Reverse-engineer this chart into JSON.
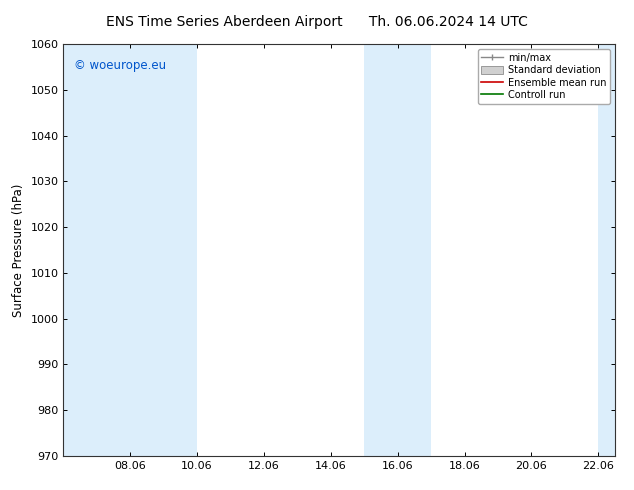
{
  "title": "ENS Time Series Aberdeen Airport",
  "date_str": "Th. 06.06.2024 14 UTC",
  "ylabel": "Surface Pressure (hPa)",
  "ylim": [
    970,
    1060
  ],
  "yticks": [
    970,
    980,
    990,
    1000,
    1010,
    1020,
    1030,
    1040,
    1050,
    1060
  ],
  "xlim_num": [
    6.0,
    22.5
  ],
  "xtick_positions": [
    8.0,
    10.0,
    12.0,
    14.0,
    16.0,
    18.0,
    20.0,
    22.0
  ],
  "xtick_labels": [
    "08.06",
    "10.06",
    "12.06",
    "14.06",
    "16.06",
    "18.06",
    "20.06",
    "22.06"
  ],
  "shaded_bands": [
    {
      "xmin": 6.0,
      "xmax": 10.0
    },
    {
      "xmin": 15.0,
      "xmax": 17.0
    },
    {
      "xmin": 22.0,
      "xmax": 22.5
    }
  ],
  "band_color": "#dceefb",
  "watermark_text": "© woeurope.eu",
  "watermark_color": "#0055cc",
  "background_color": "#ffffff",
  "legend_labels": [
    "min/max",
    "Standard deviation",
    "Ensemble mean run",
    "Controll run"
  ],
  "legend_colors": [
    "#888888",
    "#bbbbbb",
    "#cc0000",
    "#007700"
  ],
  "title_fontsize": 10,
  "axis_fontsize": 8.5,
  "tick_fontsize": 8
}
